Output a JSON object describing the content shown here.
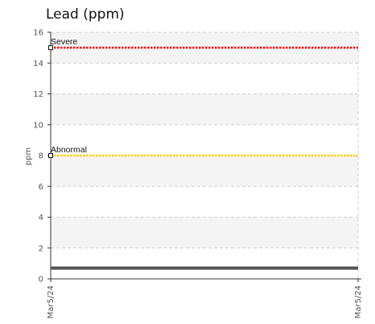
{
  "chart_data": {
    "type": "line",
    "title": "Lead (ppm)",
    "xlabel": "",
    "ylabel": "ppm",
    "ylim": [
      0,
      16
    ],
    "yticks": [
      0,
      2,
      4,
      6,
      8,
      10,
      12,
      14,
      16
    ],
    "x_tick_labels": [
      "Mar5/24",
      "Mar5/24"
    ],
    "grid": true,
    "series": [
      {
        "values": [
          0.7,
          0.7
        ],
        "color": "#555555"
      }
    ],
    "thresholds": [
      {
        "label": "Severe",
        "value": 15,
        "color": "#ff0000"
      },
      {
        "label": "Abnormal",
        "value": 8,
        "color": "#ffd200"
      }
    ],
    "band_colors": [
      "#f4f4f4",
      "#ffffff"
    ]
  }
}
